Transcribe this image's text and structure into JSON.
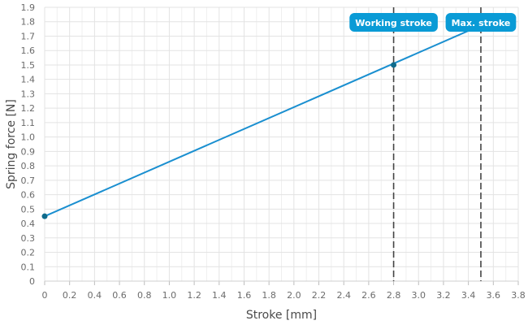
{
  "chart_data": {
    "type": "line",
    "xlabel": "Stroke [mm]",
    "ylabel": "Spring force [N]",
    "xlim": [
      0,
      3.8
    ],
    "ylim": [
      0,
      1.9
    ],
    "grid": true,
    "x_ticks": [
      "0",
      "0.2",
      "0.4",
      "0.6",
      "0.8",
      "1.0",
      "1.2",
      "1.4",
      "1.6",
      "1.8",
      "2.0",
      "2.2",
      "2.4",
      "2.6",
      "2.8",
      "3.0",
      "3.2",
      "3.4",
      "3.6",
      "3.8"
    ],
    "y_ticks": [
      "0",
      "0.1",
      "0.2",
      "0.3",
      "0.4",
      "0.5",
      "0.6",
      "0.7",
      "0.8",
      "0.9",
      "1.0",
      "1.1",
      "1.2",
      "1.3",
      "1.4",
      "1.5",
      "1.6",
      "1.7",
      "1.8",
      "1.9"
    ],
    "series": [
      {
        "x": [
          0,
          3.5
        ],
        "y": [
          0.45,
          1.775
        ],
        "color": "#1a8fd0"
      }
    ],
    "markers": [
      {
        "x": 0,
        "y": 0.45
      },
      {
        "x": 2.8,
        "y": 1.5
      }
    ],
    "reference_lines": [
      {
        "x": 2.8,
        "label": "Working stroke"
      },
      {
        "x": 3.5,
        "label": "Max. stroke"
      }
    ],
    "colors": {
      "line": "#1a8fd0",
      "marker": "#0f6b8c",
      "tag": "#0a9bd6",
      "ref_line": "#444444",
      "grid": "#e3e3e3"
    }
  }
}
